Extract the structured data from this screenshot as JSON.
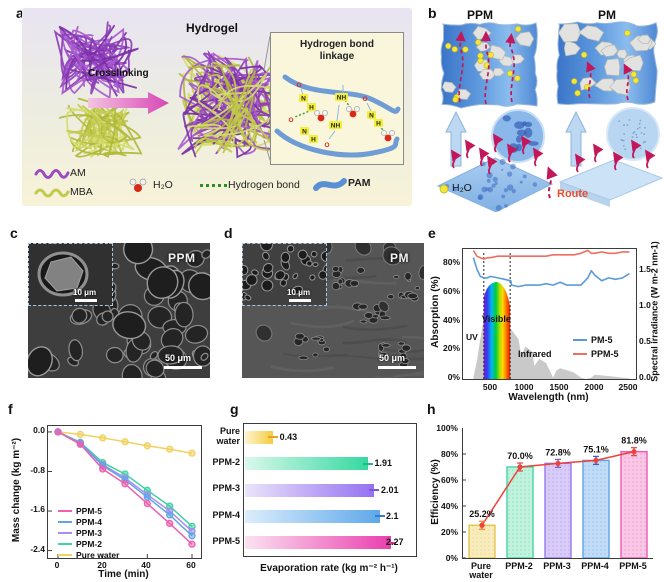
{
  "panels": {
    "a": {
      "label": "a",
      "title": "Hydrogel",
      "arrow_label": "Crosslinking",
      "inset_title_line1": "Hydrogen bond",
      "inset_title_line2": "linkage",
      "atoms": [
        "O",
        "N",
        "H",
        "O",
        "N",
        "H",
        "NH",
        "NH",
        "O",
        "O",
        "N",
        "H"
      ],
      "legend": {
        "am": "AM",
        "mba": "MBA",
        "h2o": "H₂O",
        "hbond": "Hydrogen bond",
        "pam": "PAM"
      }
    },
    "b": {
      "label": "b",
      "left_title": "PPM",
      "right_title": "PM",
      "h2o": "H₂O",
      "route": "Route"
    },
    "c": {
      "label": "c",
      "tag": "PPM",
      "inset_scale": "10 μm",
      "scale": "50 μm"
    },
    "d": {
      "label": "d",
      "tag": "PM",
      "inset_scale": "10 μm",
      "scale": "50 μm"
    },
    "e": {
      "label": "e"
    },
    "f": {
      "label": "f"
    },
    "g": {
      "label": "g"
    },
    "h": {
      "label": "h"
    }
  },
  "chart_data": [
    {
      "id": "e",
      "type": "line",
      "xlabel": "Wavelength (nm)",
      "ylabel": "Absorption (%)",
      "ylabel_right": "Spectral irradiance (W m-2 nm-1)",
      "xlim": [
        100,
        2595
      ],
      "ylim_left_percent": [
        0,
        90
      ],
      "ylim_right": [
        0,
        1.8
      ],
      "xticks": [
        "500",
        "1000",
        "1500",
        "2000",
        "2500"
      ],
      "yticks_left": [
        "80%",
        "60%",
        "40%",
        "20%",
        "0%"
      ],
      "yticks_right": [
        "1.5",
        "1.0",
        "0.5",
        "0.0"
      ],
      "regions": {
        "uv": "UV",
        "visible": "Visible",
        "infrared": "Infrared"
      },
      "vlines_nm": [
        400,
        780
      ],
      "grid": false,
      "legend_position": "right-middle",
      "x": [
        250,
        300,
        350,
        400,
        450,
        500,
        600,
        700,
        790,
        800,
        900,
        1000,
        1100,
        1200,
        1300,
        1400,
        1500,
        1600,
        1700,
        1800,
        1900,
        1950,
        2000,
        2100,
        2200,
        2300,
        2400,
        2500
      ],
      "series": [
        {
          "name": "PM-5",
          "color": "#5b9bd5",
          "values": [
            84,
            76,
            71,
            70,
            70,
            71,
            70,
            69,
            68,
            65,
            64,
            65,
            65,
            65,
            66,
            65,
            67,
            65,
            65,
            65,
            70,
            75,
            72,
            68,
            70,
            69,
            70,
            73
          ]
        },
        {
          "name": "PPM-5",
          "color": "#ef6e62",
          "values": [
            89,
            85,
            84,
            83,
            84,
            84,
            85,
            85,
            85,
            85,
            85,
            85,
            85,
            85,
            85,
            86,
            86,
            86,
            86,
            87,
            89,
            87,
            87,
            88,
            87,
            87,
            88,
            88
          ]
        }
      ],
      "solar": {
        "x": [
          250,
          300,
          350,
          400,
          450,
          500,
          550,
          600,
          650,
          700,
          750,
          800,
          850,
          900,
          940,
          1000,
          1100,
          1130,
          1200,
          1300,
          1400,
          1450,
          1500,
          1600,
          1700,
          1800,
          1870,
          1950,
          2000,
          2100,
          2200,
          2300,
          2400,
          2500
        ],
        "values": [
          0.02,
          0.25,
          0.55,
          0.85,
          1.0,
          1.02,
          0.98,
          0.92,
          0.88,
          0.82,
          0.74,
          0.68,
          0.62,
          0.55,
          0.33,
          0.45,
          0.38,
          0.18,
          0.28,
          0.22,
          0.02,
          0.12,
          0.15,
          0.12,
          0.09,
          0.02,
          0.0,
          0.02,
          0.06,
          0.05,
          0.04,
          0.03,
          0.02,
          0.01
        ]
      }
    },
    {
      "id": "f",
      "type": "line",
      "xlabel": "Time (min)",
      "ylabel": "Mass change (kg m⁻²)",
      "x": [
        0,
        10,
        20,
        30,
        40,
        50,
        60
      ],
      "xticks": [
        "0",
        "20",
        "40",
        "60"
      ],
      "yticks": [
        "0.0",
        "-0.8",
        "-1.6",
        "-2.4"
      ],
      "xlim": [
        -3,
        63
      ],
      "ylim": [
        -2.55,
        0.12
      ],
      "grid": false,
      "legend_position": "lower-left",
      "series": [
        {
          "name": "PPM-5",
          "color": "#ee5fae",
          "values": [
            0,
            -0.25,
            -0.75,
            -1.05,
            -1.45,
            -1.85,
            -2.27
          ]
        },
        {
          "name": "PPM-4",
          "color": "#62a4e6",
          "values": [
            0,
            -0.23,
            -0.68,
            -0.97,
            -1.32,
            -1.68,
            -2.1
          ]
        },
        {
          "name": "PPM-3",
          "color": "#a78df0",
          "values": [
            0,
            -0.22,
            -0.66,
            -0.93,
            -1.27,
            -1.6,
            -2.01
          ]
        },
        {
          "name": "PPM-2",
          "color": "#3ed2a2",
          "values": [
            0,
            -0.21,
            -0.62,
            -0.85,
            -1.18,
            -1.5,
            -1.91
          ]
        },
        {
          "name": "Pure water",
          "color": "#f0d25e",
          "values": [
            0,
            -0.05,
            -0.12,
            -0.2,
            -0.28,
            -0.35,
            -0.43
          ]
        }
      ]
    },
    {
      "id": "g",
      "type": "bar",
      "orientation": "horizontal",
      "xlabel": "Evaporation rate (kg m⁻² h⁻¹)",
      "categories": [
        "Pure water",
        "PPM-2",
        "PPM-3",
        "PPM-4",
        "PPM-5"
      ],
      "values": [
        0.43,
        1.91,
        2.01,
        2.1,
        2.27
      ],
      "labels": [
        "0.43",
        "1.91",
        "2.01",
        "2.1",
        "2.27"
      ],
      "xlim": [
        0,
        2.65
      ],
      "grid": false,
      "colors_start": [
        "#fdf4cf",
        "#d9f8ec",
        "#eae4fb",
        "#dcedfb",
        "#fbe2f1"
      ],
      "colors_end": [
        "#f3cd3f",
        "#35d8a0",
        "#9571f1",
        "#5ea8ea",
        "#ea3fae"
      ],
      "error_colors": [
        "#e8a020",
        "#20b888",
        "#7858e0",
        "#3878d0",
        "#e03898"
      ]
    },
    {
      "id": "h",
      "type": "bar",
      "ylabel": "Efficiency (%)",
      "categories": [
        "Pure water",
        "PPM-2",
        "PPM-3",
        "PPM-4",
        "PPM-5"
      ],
      "values": [
        25.2,
        70.0,
        72.8,
        75.1,
        81.8
      ],
      "labels": [
        "25.2%",
        "70.0%",
        "72.8%",
        "75.1%",
        "81.8%"
      ],
      "ylim": [
        0,
        100
      ],
      "grid": false,
      "yticks": [
        "100%",
        "80%",
        "60%",
        "40%",
        "20%",
        "0%"
      ],
      "bar_fills": [
        "#f8ecbe",
        "#c2f2de",
        "#daccf8",
        "#c2dcf8",
        "#f8c8e6"
      ],
      "bar_borders": [
        "#e2c44e",
        "#44d6a2",
        "#9678ec",
        "#5ea4e8",
        "#ec58b4"
      ],
      "line_color": "#ef4238",
      "error_colors": [
        "#f08030",
        "#e04848",
        "#7060d0",
        "#3858c8",
        "#e04848"
      ]
    }
  ]
}
